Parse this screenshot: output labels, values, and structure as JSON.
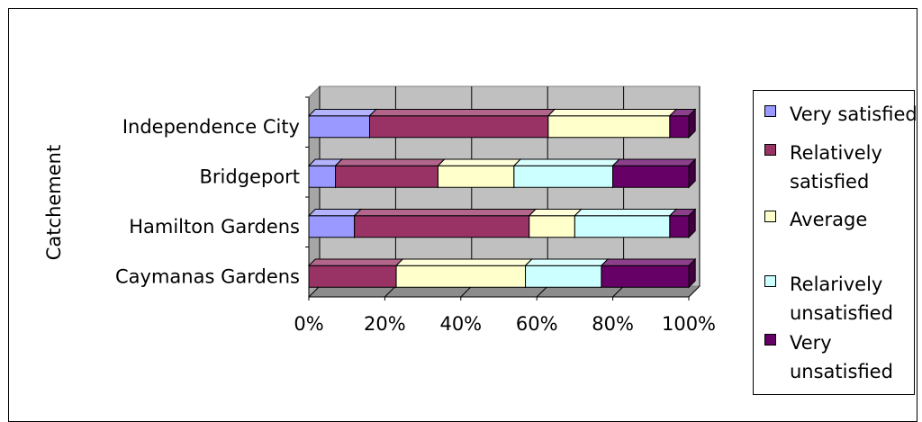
{
  "chart_data": {
    "type": "bar",
    "orientation": "horizontal",
    "stacked": "percent",
    "ylabel": "Catchement",
    "categories": [
      "Independence City",
      "Bridgeport",
      "Hamilton Gardens",
      "Caymanas Gardens"
    ],
    "x_ticks": [
      "0%",
      "20%",
      "40%",
      "60%",
      "80%",
      "100%"
    ],
    "xlim": [
      0,
      100
    ],
    "grid": true,
    "legend_position": "right",
    "series": [
      {
        "name": "Very satisfied",
        "color": "#9999ff",
        "values": [
          16,
          7,
          12,
          0
        ]
      },
      {
        "name": "Relatively satisfied",
        "color": "#993366",
        "values": [
          47,
          27,
          46,
          23
        ]
      },
      {
        "name": "Average",
        "color": "#ffffcc",
        "values": [
          32,
          20,
          12,
          34
        ]
      },
      {
        "name": "Relarively unsatisfied",
        "color": "#ccffff",
        "values": [
          0,
          26,
          25,
          20
        ]
      },
      {
        "name": "Very unsatisfied",
        "color": "#660066",
        "values": [
          5,
          20,
          5,
          23
        ]
      }
    ]
  }
}
